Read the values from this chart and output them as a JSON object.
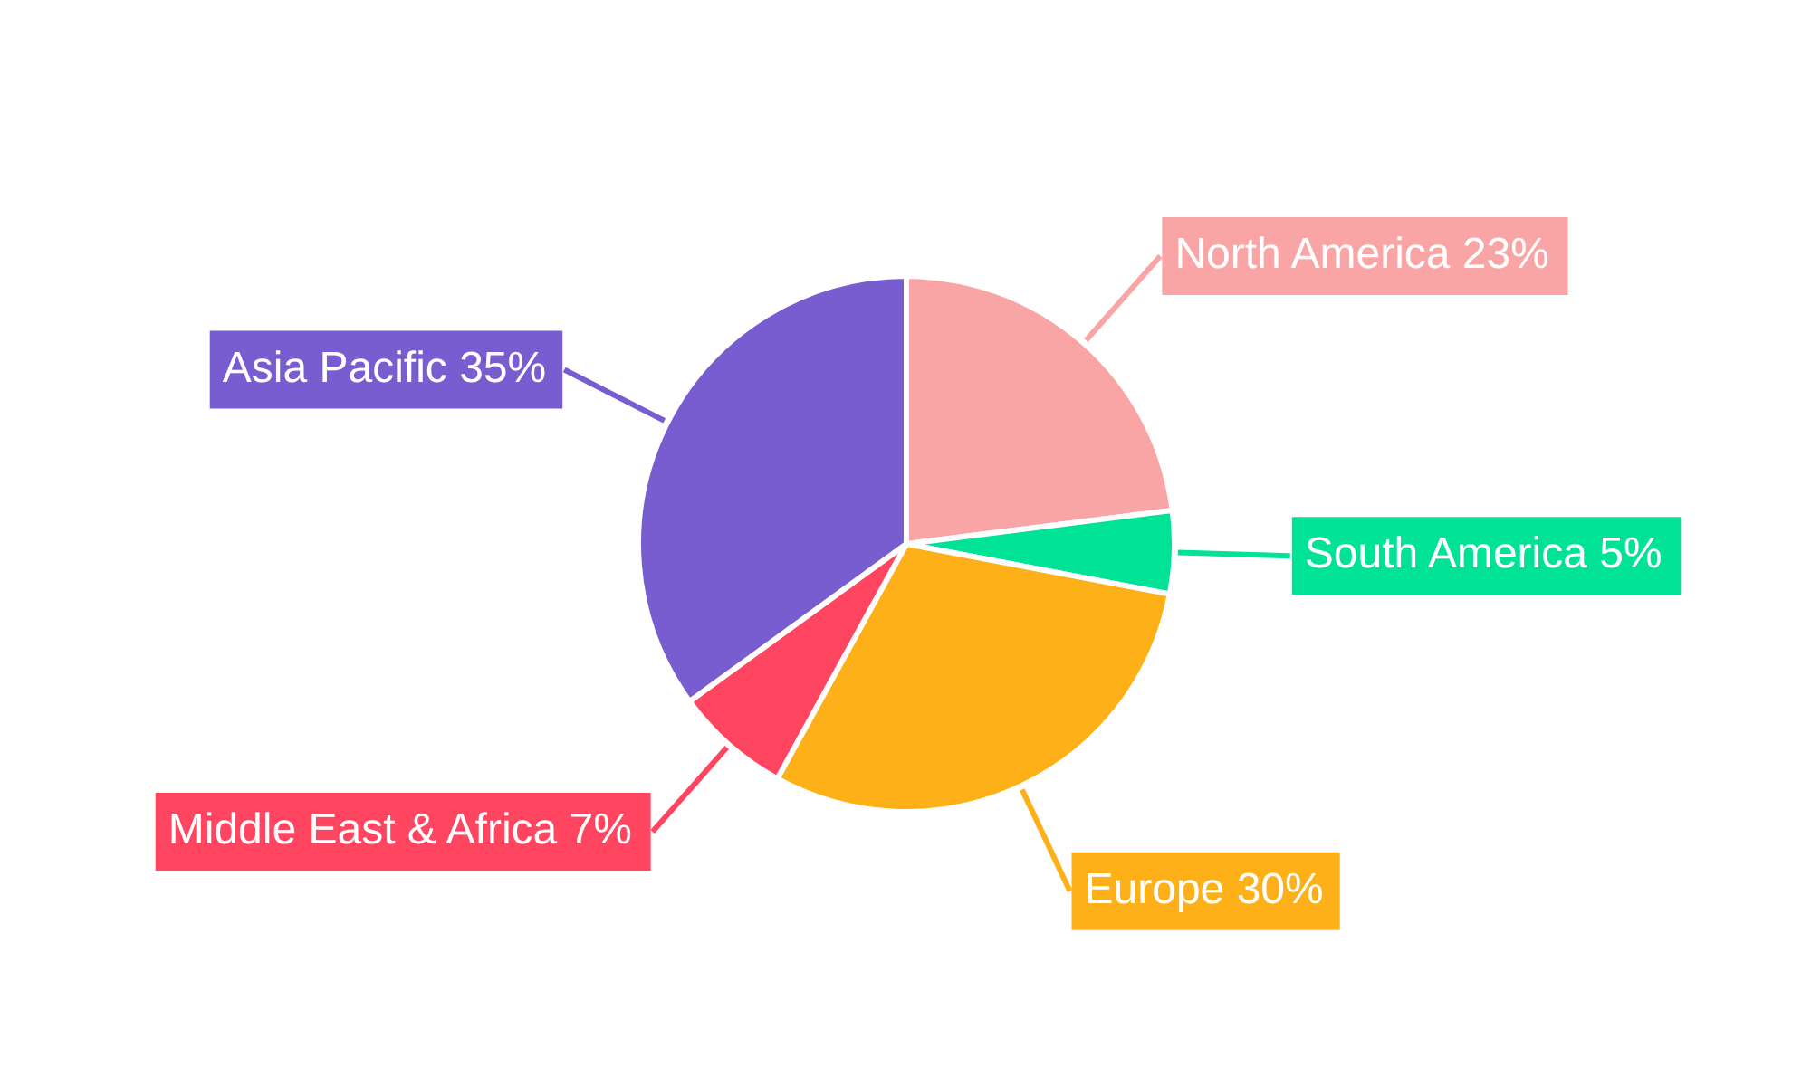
{
  "chart_data": {
    "type": "pie",
    "categories": [
      "North America",
      "South America",
      "Europe",
      "Middle East & Africa",
      "Asia Pacific"
    ],
    "values": [
      23,
      5,
      30,
      7,
      35
    ],
    "value_labels": [
      "23%",
      "5%",
      "30%",
      "7%",
      "35%"
    ],
    "colors": [
      "#f9a5a6",
      "#00e396",
      "#feb019",
      "#ff4560",
      "#775dd0"
    ]
  }
}
